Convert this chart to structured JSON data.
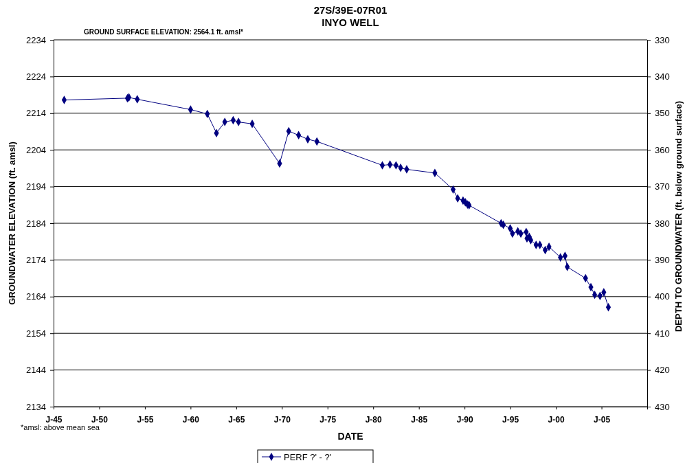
{
  "chart_data": {
    "type": "line",
    "title": "27S/39E-07R01",
    "subtitle": "INYO WELL",
    "xlabel": "DATE",
    "ylabel": "GROUNDWATER ELEVATION (ft. amsl)",
    "y2label": "DEPTH TO GROUNDWATER (ft. below ground surface)",
    "annotations": [
      "GROUND SURFACE ELEVATION:  2564.1 ft. amsl*",
      "*amsl:  above mean sea"
    ],
    "xlim": [
      "1945-01",
      "2010-01"
    ],
    "xticks": [
      {
        "value": "1945-01",
        "label": "J-45"
      },
      {
        "value": "1950-01",
        "label": "J-50"
      },
      {
        "value": "1955-01",
        "label": "J-55"
      },
      {
        "value": "1960-01",
        "label": "J-60"
      },
      {
        "value": "1965-01",
        "label": "J-65"
      },
      {
        "value": "1970-01",
        "label": "J-70"
      },
      {
        "value": "1975-01",
        "label": "J-75"
      },
      {
        "value": "1980-01",
        "label": "J-80"
      },
      {
        "value": "1985-01",
        "label": "J-85"
      },
      {
        "value": "1990-01",
        "label": "J-90"
      },
      {
        "value": "1995-01",
        "label": "J-95"
      },
      {
        "value": "2000-01",
        "label": "J-00"
      },
      {
        "value": "2005-01",
        "label": "J-05"
      }
    ],
    "ylim": [
      2134,
      2234
    ],
    "yticks": [
      2134,
      2144,
      2154,
      2164,
      2174,
      2184,
      2194,
      2204,
      2214,
      2224,
      2234
    ],
    "y2lim": [
      430,
      330
    ],
    "y2ticks": [
      330,
      340,
      350,
      360,
      370,
      380,
      390,
      400,
      410,
      420,
      430
    ],
    "grid": "y",
    "legend": "bottom",
    "marker": "diamond",
    "line_style": "solid",
    "series": [
      {
        "name": "PERF ?' - ?'",
        "color": "#000080",
        "x": [
          "1946-03",
          "1953-02",
          "1953-04",
          "1954-03",
          "1960-01",
          "1961-11",
          "1962-11",
          "1963-10",
          "1964-09",
          "1965-04",
          "1966-10",
          "1969-10",
          "1970-10",
          "1971-11",
          "1972-11",
          "1973-11",
          "1981-01",
          "1981-11",
          "1982-07",
          "1983-01",
          "1983-09",
          "1986-10",
          "1988-10",
          "1989-04",
          "1989-11",
          "1990-02",
          "1990-05",
          "1990-07",
          "1994-01",
          "1994-04",
          "1995-01",
          "1995-04",
          "1995-11",
          "1996-03",
          "1996-10",
          "1996-11",
          "1997-02",
          "1997-04",
          "1997-11",
          "1998-04",
          "1998-11",
          "1999-04",
          "2000-07",
          "2001-01",
          "2001-04",
          "2003-04",
          "2003-11",
          "2004-04",
          "2004-11",
          "2005-04",
          "2005-10"
        ],
        "values": [
          2217.6,
          2218.1,
          2218.3,
          2217.8,
          2215.0,
          2213.8,
          2208.6,
          2211.6,
          2212.1,
          2211.6,
          2211.1,
          2200.3,
          2209.1,
          2208.0,
          2206.9,
          2206.3,
          2199.8,
          2200.0,
          2199.8,
          2199.1,
          2198.7,
          2197.7,
          2193.2,
          2190.8,
          2190.2,
          2189.7,
          2189.1,
          2188.9,
          2184.0,
          2183.6,
          2182.6,
          2181.2,
          2181.8,
          2181.2,
          2181.6,
          2179.9,
          2180.3,
          2179.4,
          2178.1,
          2178.1,
          2176.7,
          2177.6,
          2174.7,
          2175.1,
          2172.1,
          2169.0,
          2166.6,
          2164.5,
          2164.2,
          2165.2,
          2161.1
        ]
      }
    ]
  }
}
